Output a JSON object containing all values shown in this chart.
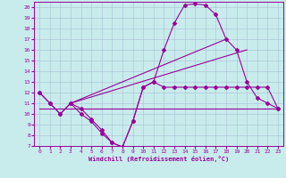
{
  "xlabel": "Windchill (Refroidissement éolien,°C)",
  "bg_color": "#c8ecec",
  "grid_color": "#b0c8d8",
  "line_color": "#990099",
  "xlim": [
    -0.5,
    23.5
  ],
  "ylim": [
    7,
    20.5
  ],
  "xticks": [
    0,
    1,
    2,
    3,
    4,
    5,
    6,
    7,
    8,
    9,
    10,
    11,
    12,
    13,
    14,
    15,
    16,
    17,
    18,
    19,
    20,
    21,
    22,
    23
  ],
  "yticks": [
    7,
    8,
    9,
    10,
    11,
    12,
    13,
    14,
    15,
    16,
    17,
    18,
    19,
    20
  ],
  "series_main": {
    "x": [
      0,
      1,
      2,
      3,
      4,
      5,
      6,
      7,
      8,
      9,
      10,
      11,
      12,
      13,
      14,
      15,
      16,
      17,
      18,
      19,
      20,
      21,
      22,
      23
    ],
    "y": [
      12,
      11,
      10,
      11,
      10.5,
      9.5,
      8.5,
      7.3,
      6.9,
      9.3,
      12.5,
      13,
      16,
      18.5,
      20.2,
      20.3,
      20.2,
      19.3,
      17,
      16,
      13,
      11.5,
      11,
      10.5
    ]
  },
  "series_wc": {
    "x": [
      0,
      1,
      2,
      3,
      4,
      5,
      6,
      7,
      8,
      9,
      10,
      11,
      12,
      13,
      14,
      15,
      16,
      17,
      18,
      19,
      20,
      21,
      22,
      23
    ],
    "y": [
      12,
      11,
      10,
      11,
      10,
      9.3,
      8.2,
      7.3,
      6.9,
      9.3,
      12.5,
      13,
      12.5,
      12.5,
      12.5,
      12.5,
      12.5,
      12.5,
      12.5,
      12.5,
      12.5,
      12.5,
      12.5,
      10.5
    ]
  },
  "line_flat": {
    "x": [
      0,
      23
    ],
    "y": [
      10.5,
      10.5
    ]
  },
  "line_diag1": {
    "x": [
      3,
      18
    ],
    "y": [
      11,
      17
    ]
  },
  "line_diag2": {
    "x": [
      3,
      20
    ],
    "y": [
      11,
      16
    ]
  }
}
